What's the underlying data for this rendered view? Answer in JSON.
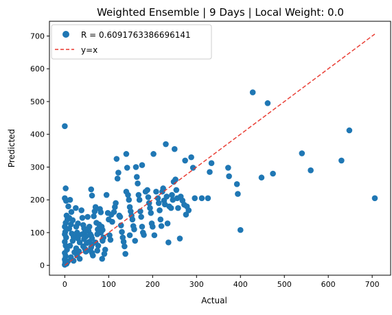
{
  "chart_data": {
    "type": "scatter",
    "title": "Weighted Ensemble | 9 Days | Local Weight: 0.0",
    "xlabel": "Actual",
    "ylabel": "Predicted",
    "xlim": [
      -35,
      742
    ],
    "ylim": [
      -30,
      745
    ],
    "xticks": [
      0,
      100,
      200,
      300,
      400,
      500,
      600,
      700
    ],
    "yticks": [
      0,
      100,
      200,
      300,
      400,
      500,
      600,
      700
    ],
    "grid": false,
    "legend_position": "top-left",
    "series": [
      {
        "name": "R = 0.6091763386696141",
        "kind": "points",
        "color": "#1f77b4",
        "points": [
          [
            0,
            425
          ],
          [
            2,
            235
          ],
          [
            0,
            205
          ],
          [
            3,
            197
          ],
          [
            8,
            180
          ],
          [
            4,
            152
          ],
          [
            6,
            140
          ],
          [
            2,
            130
          ],
          [
            0,
            118
          ],
          [
            1,
            102
          ],
          [
            0,
            95
          ],
          [
            3,
            85
          ],
          [
            0,
            72
          ],
          [
            2,
            60
          ],
          [
            5,
            48
          ],
          [
            0,
            38
          ],
          [
            2,
            28
          ],
          [
            0,
            18
          ],
          [
            1,
            10
          ],
          [
            4,
            5
          ],
          [
            0,
            2
          ],
          [
            7,
            12
          ],
          [
            12,
            200
          ],
          [
            15,
            163
          ],
          [
            10,
            145
          ],
          [
            18,
            138
          ],
          [
            14,
            125
          ],
          [
            10,
            112
          ],
          [
            16,
            97
          ],
          [
            20,
            87
          ],
          [
            18,
            75
          ],
          [
            12,
            60
          ],
          [
            22,
            40
          ],
          [
            20,
            14
          ],
          [
            14,
            25
          ],
          [
            25,
            175
          ],
          [
            30,
            128
          ],
          [
            26,
            118
          ],
          [
            28,
            100
          ],
          [
            32,
            92
          ],
          [
            30,
            82
          ],
          [
            34,
            70
          ],
          [
            26,
            52
          ],
          [
            32,
            43
          ],
          [
            28,
            30
          ],
          [
            34,
            20
          ],
          [
            38,
            168
          ],
          [
            40,
            145
          ],
          [
            42,
            123
          ],
          [
            44,
            113
          ],
          [
            46,
            102
          ],
          [
            40,
            95
          ],
          [
            48,
            88
          ],
          [
            44,
            80
          ],
          [
            50,
            68
          ],
          [
            42,
            58
          ],
          [
            46,
            50
          ],
          [
            48,
            42
          ],
          [
            52,
            148
          ],
          [
            56,
            118
          ],
          [
            54,
            105
          ],
          [
            58,
            95
          ],
          [
            60,
            90
          ],
          [
            62,
            82
          ],
          [
            56,
            72
          ],
          [
            62,
            64
          ],
          [
            60,
            55
          ],
          [
            58,
            46
          ],
          [
            62,
            38
          ],
          [
            64,
            30
          ],
          [
            60,
            232
          ],
          [
            62,
            213
          ],
          [
            70,
            178
          ],
          [
            68,
            165
          ],
          [
            66,
            150
          ],
          [
            72,
            130
          ],
          [
            75,
            110
          ],
          [
            74,
            95
          ],
          [
            70,
            70
          ],
          [
            76,
            60
          ],
          [
            74,
            45
          ],
          [
            80,
            172
          ],
          [
            82,
            162
          ],
          [
            84,
            118
          ],
          [
            86,
            108
          ],
          [
            88,
            85
          ],
          [
            86,
            75
          ],
          [
            92,
            48
          ],
          [
            90,
            35
          ],
          [
            85,
            20
          ],
          [
            82,
            100
          ],
          [
            78,
            125
          ],
          [
            95,
            215
          ],
          [
            98,
            160
          ],
          [
            100,
            140
          ],
          [
            102,
            92
          ],
          [
            104,
            78
          ],
          [
            108,
            133
          ],
          [
            106,
            155
          ],
          [
            112,
            163
          ],
          [
            114,
            178
          ],
          [
            116,
            190
          ],
          [
            118,
            325
          ],
          [
            120,
            265
          ],
          [
            122,
            283
          ],
          [
            124,
            152
          ],
          [
            126,
            148
          ],
          [
            128,
            122
          ],
          [
            130,
            102
          ],
          [
            132,
            85
          ],
          [
            134,
            72
          ],
          [
            136,
            58
          ],
          [
            138,
            35
          ],
          [
            140,
            340
          ],
          [
            142,
            298
          ],
          [
            140,
            225
          ],
          [
            144,
            215
          ],
          [
            146,
            200
          ],
          [
            148,
            178
          ],
          [
            150,
            165
          ],
          [
            152,
            152
          ],
          [
            154,
            140
          ],
          [
            156,
            120
          ],
          [
            158,
            110
          ],
          [
            160,
            75
          ],
          [
            148,
            92
          ],
          [
            162,
            300
          ],
          [
            164,
            270
          ],
          [
            166,
            250
          ],
          [
            168,
            215
          ],
          [
            170,
            200
          ],
          [
            172,
            165
          ],
          [
            174,
            148
          ],
          [
            176,
            118
          ],
          [
            178,
            100
          ],
          [
            180,
            93
          ],
          [
            176,
            306
          ],
          [
            184,
            225
          ],
          [
            188,
            230
          ],
          [
            190,
            208
          ],
          [
            192,
            190
          ],
          [
            194,
            175
          ],
          [
            196,
            160
          ],
          [
            198,
            128
          ],
          [
            200,
            118
          ],
          [
            204,
            92
          ],
          [
            202,
            340
          ],
          [
            208,
            225
          ],
          [
            212,
            205
          ],
          [
            214,
            190
          ],
          [
            216,
            168
          ],
          [
            218,
            140
          ],
          [
            220,
            120
          ],
          [
            222,
            225
          ],
          [
            224,
            235
          ],
          [
            226,
            198
          ],
          [
            228,
            186
          ],
          [
            230,
            370
          ],
          [
            232,
            210
          ],
          [
            234,
            128
          ],
          [
            236,
            70
          ],
          [
            238,
            180
          ],
          [
            242,
            175
          ],
          [
            244,
            215
          ],
          [
            246,
            200
          ],
          [
            248,
            255
          ],
          [
            250,
            355
          ],
          [
            252,
            262
          ],
          [
            254,
            230
          ],
          [
            256,
            205
          ],
          [
            258,
            175
          ],
          [
            262,
            82
          ],
          [
            264,
            210
          ],
          [
            268,
            198
          ],
          [
            272,
            185
          ],
          [
            274,
            320
          ],
          [
            276,
            155
          ],
          [
            278,
            180
          ],
          [
            282,
            168
          ],
          [
            288,
            330
          ],
          [
            292,
            298
          ],
          [
            296,
            205
          ],
          [
            312,
            205
          ],
          [
            326,
            205
          ],
          [
            330,
            285
          ],
          [
            334,
            312
          ],
          [
            372,
            298
          ],
          [
            374,
            272
          ],
          [
            392,
            248
          ],
          [
            394,
            218
          ],
          [
            400,
            108
          ],
          [
            428,
            528
          ],
          [
            448,
            268
          ],
          [
            462,
            495
          ],
          [
            474,
            280
          ],
          [
            540,
            342
          ],
          [
            560,
            290
          ],
          [
            630,
            320
          ],
          [
            648,
            412
          ],
          [
            706,
            205
          ]
        ]
      },
      {
        "name": "y=x",
        "kind": "line",
        "color": "#e8352b",
        "points": [
          [
            0,
            0
          ],
          [
            706,
            706
          ]
        ]
      }
    ]
  }
}
